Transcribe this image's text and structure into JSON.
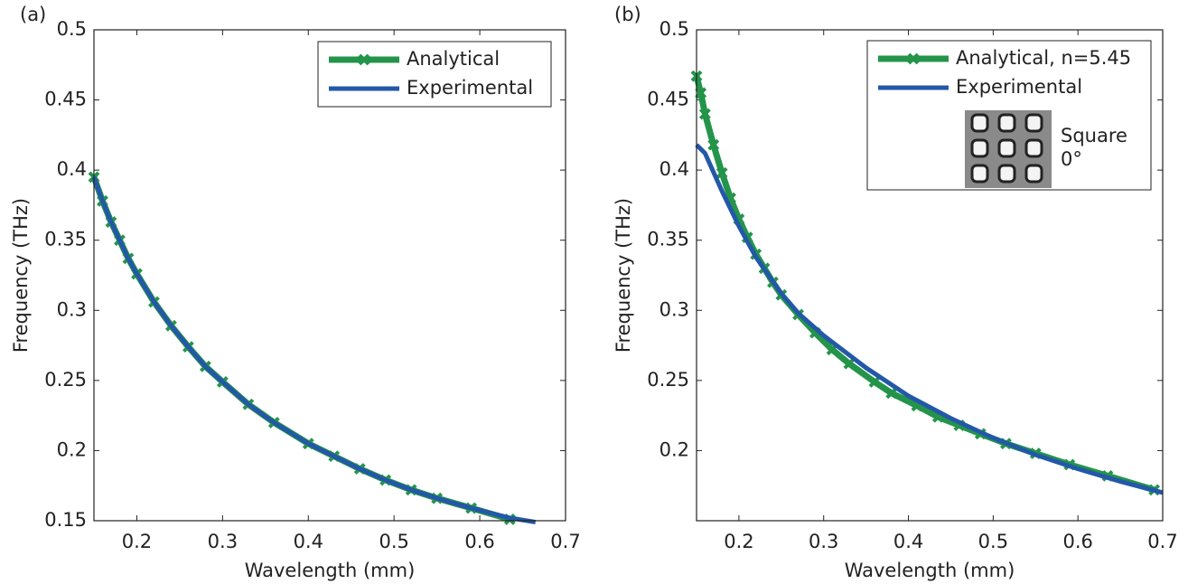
{
  "chart_data": [
    {
      "type": "line",
      "panel_label": "(a)",
      "x_label": "Wavelength (mm)",
      "y_label": "Frequency (THz)",
      "xlim": [
        0.15,
        0.7
      ],
      "xticks": [
        0.2,
        0.3,
        0.4,
        0.5,
        0.6,
        0.7
      ],
      "ylim": [
        0.15,
        0.5
      ],
      "yticks": [
        0.15,
        0.2,
        0.25,
        0.3,
        0.35,
        0.4,
        0.45,
        0.5
      ],
      "legend": "upper right",
      "series": [
        {
          "name": "Analytical",
          "color": "#24944a",
          "marker": "x",
          "x": [
            0.15,
            0.16,
            0.17,
            0.18,
            0.19,
            0.2,
            0.22,
            0.24,
            0.26,
            0.28,
            0.3,
            0.33,
            0.36,
            0.4,
            0.43,
            0.46,
            0.49,
            0.52,
            0.55,
            0.59,
            0.635
          ],
          "values": [
            0.395,
            0.378,
            0.363,
            0.35,
            0.337,
            0.326,
            0.306,
            0.289,
            0.274,
            0.26,
            0.249,
            0.233,
            0.22,
            0.205,
            0.196,
            0.187,
            0.179,
            0.172,
            0.166,
            0.159,
            0.151
          ]
        },
        {
          "name": "Experimental",
          "color": "#2358a8",
          "x": [
            0.15,
            0.16,
            0.17,
            0.18,
            0.19,
            0.2,
            0.22,
            0.24,
            0.26,
            0.28,
            0.3,
            0.33,
            0.36,
            0.4,
            0.43,
            0.46,
            0.49,
            0.52,
            0.55,
            0.59,
            0.635,
            0.665
          ],
          "values": [
            0.395,
            0.378,
            0.363,
            0.35,
            0.337,
            0.326,
            0.306,
            0.289,
            0.274,
            0.26,
            0.249,
            0.233,
            0.22,
            0.205,
            0.196,
            0.187,
            0.179,
            0.172,
            0.166,
            0.159,
            0.152,
            0.149
          ]
        }
      ]
    },
    {
      "type": "line",
      "panel_label": "(b)",
      "x_label": "Wavelength (mm)",
      "y_label": "Frequency (THz)",
      "xlim": [
        0.15,
        0.7
      ],
      "xticks": [
        0.2,
        0.3,
        0.4,
        0.5,
        0.6,
        0.7
      ],
      "ylim": [
        0.15,
        0.5
      ],
      "yticks": [
        0.2,
        0.25,
        0.3,
        0.35,
        0.4,
        0.45,
        0.5
      ],
      "legend": "upper right",
      "inset_text": [
        "Square",
        "0°"
      ],
      "series": [
        {
          "name": "Analytical, n=5.45",
          "color": "#24944a",
          "marker": "x",
          "x": [
            0.15,
            0.155,
            0.16,
            0.17,
            0.18,
            0.19,
            0.2,
            0.21,
            0.22,
            0.23,
            0.24,
            0.25,
            0.27,
            0.29,
            0.31,
            0.33,
            0.36,
            0.38,
            0.41,
            0.435,
            0.46,
            0.485,
            0.515,
            0.55,
            0.59,
            0.635,
            0.69
          ],
          "values": [
            0.467,
            0.455,
            0.44,
            0.418,
            0.398,
            0.38,
            0.365,
            0.352,
            0.34,
            0.33,
            0.32,
            0.311,
            0.297,
            0.284,
            0.272,
            0.262,
            0.249,
            0.241,
            0.232,
            0.224,
            0.218,
            0.212,
            0.205,
            0.198,
            0.19,
            0.182,
            0.172
          ]
        },
        {
          "name": "Experimental",
          "color": "#2358a8",
          "x": [
            0.15,
            0.16,
            0.18,
            0.2,
            0.22,
            0.25,
            0.27,
            0.3,
            0.35,
            0.4,
            0.45,
            0.5,
            0.55,
            0.6,
            0.65,
            0.7
          ],
          "values": [
            0.418,
            0.412,
            0.385,
            0.36,
            0.338,
            0.312,
            0.298,
            0.282,
            0.259,
            0.239,
            0.223,
            0.209,
            0.197,
            0.187,
            0.178,
            0.17
          ]
        }
      ]
    }
  ]
}
